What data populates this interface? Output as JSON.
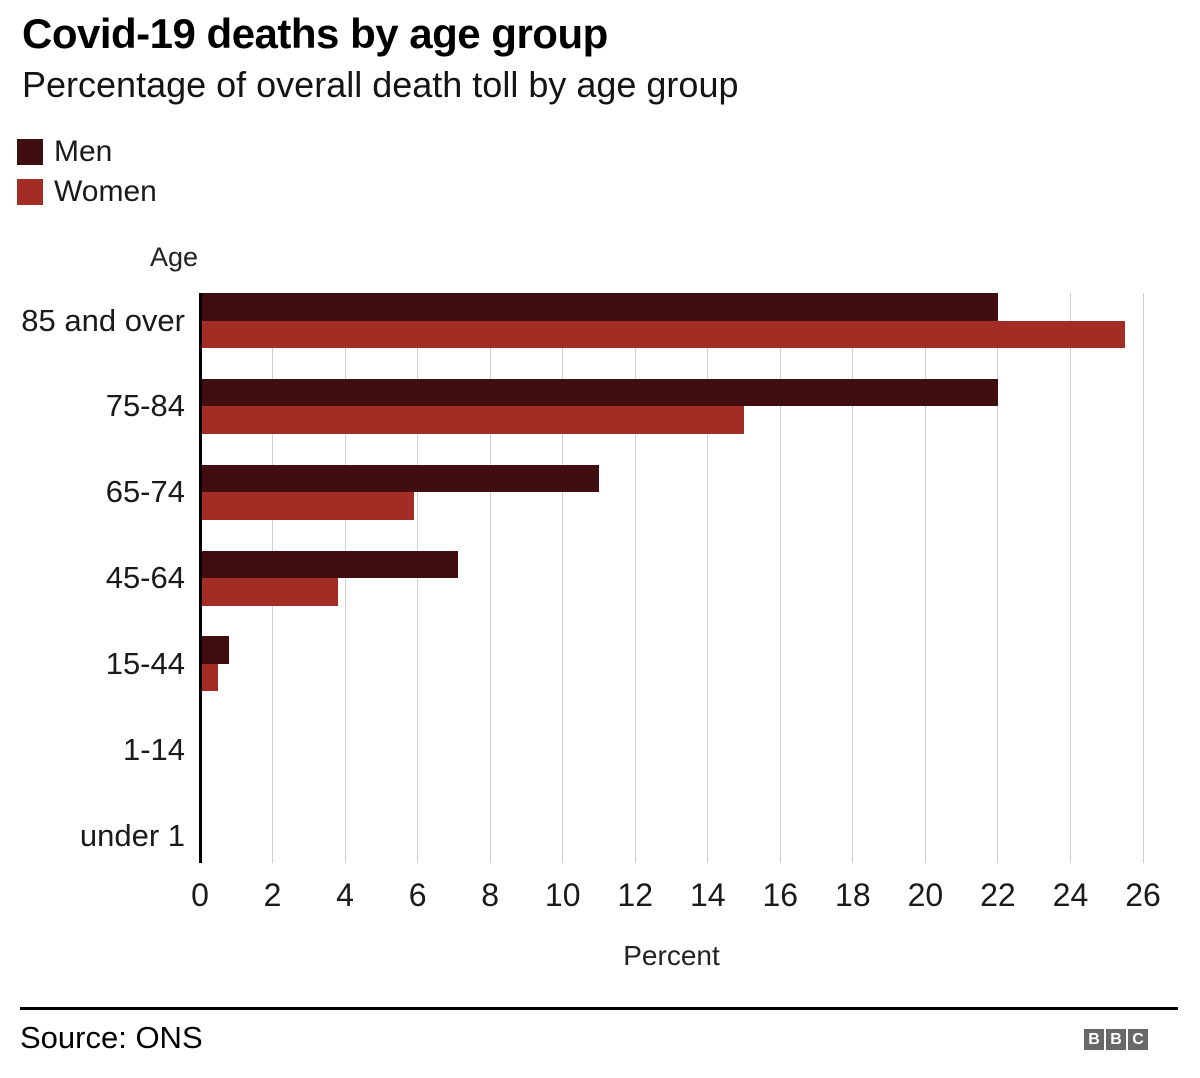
{
  "header": {
    "title": "Covid-19 deaths by age group",
    "subtitle": "Percentage of overall death toll by age group"
  },
  "chart_data": {
    "type": "bar",
    "orientation": "horizontal",
    "title": "Covid-19 deaths by age group",
    "subtitle": "Percentage of overall death toll by age group",
    "categories": [
      "85 and over",
      "75-84",
      "65-74",
      "45-64",
      "15-44",
      "1-14",
      "under 1"
    ],
    "series": [
      {
        "name": "Men",
        "color": "#400E11",
        "values": [
          22,
          22,
          11,
          7.1,
          0.8,
          0,
          0
        ]
      },
      {
        "name": "Women",
        "color": "#A32C25",
        "values": [
          25.5,
          15,
          5.9,
          3.8,
          0.5,
          0,
          0
        ]
      }
    ],
    "xlabel": "Percent",
    "ylabel": "Age",
    "xlim": [
      0,
      26
    ],
    "xticks": [
      0,
      2,
      4,
      6,
      8,
      10,
      12,
      14,
      16,
      18,
      20,
      22,
      24,
      26
    ],
    "grid": true,
    "legend_position": "top-left"
  },
  "colors": {
    "men": "#400E11",
    "women": "#A32C25",
    "gridline": "#CFCFCF",
    "axis": "#000000",
    "logo_background": "#686868"
  },
  "footer": {
    "source": "Source: ONS",
    "logo_letters": [
      "B",
      "B",
      "C"
    ]
  }
}
